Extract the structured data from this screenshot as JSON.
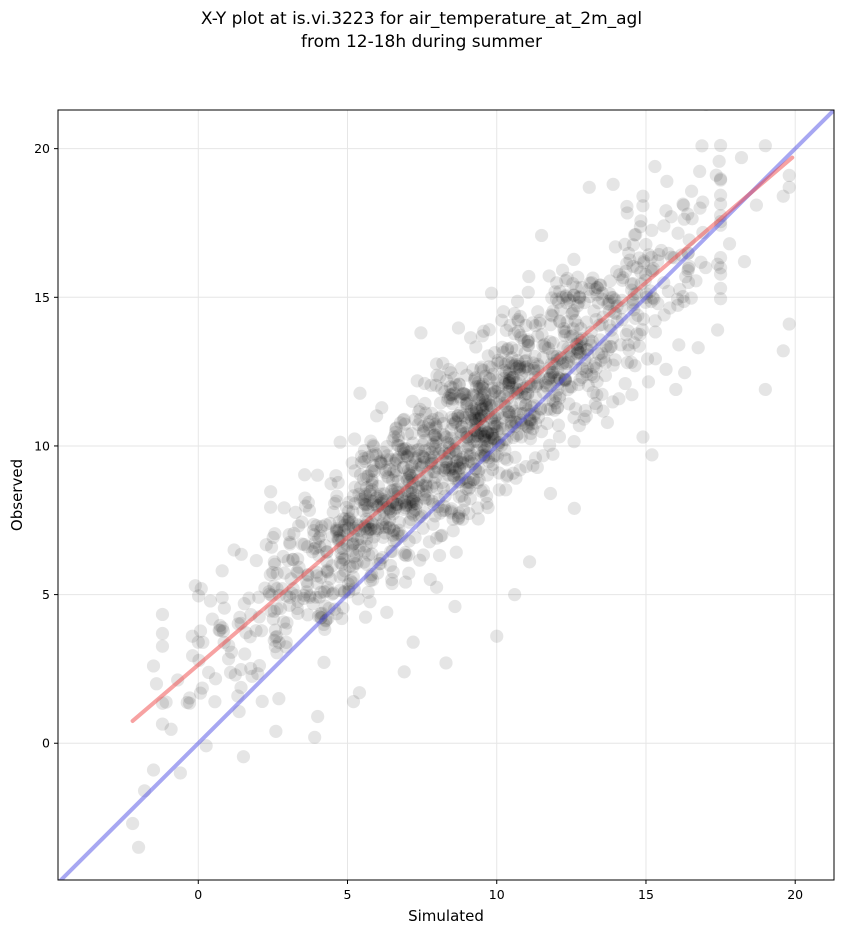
{
  "title": {
    "line1": "X-Y plot at is.vi.3223 for air_temperature_at_2m_agl",
    "line2": "from 12-18h during summer"
  },
  "chart_data": {
    "type": "scatter",
    "xlabel": "Simulated",
    "ylabel": "Observed",
    "xlim": [
      -4.7,
      21.3
    ],
    "ylim": [
      -4.6,
      21.3
    ],
    "xticks": [
      0,
      5,
      10,
      15,
      20
    ],
    "yticks": [
      0,
      5,
      10,
      15,
      20
    ],
    "grid": true,
    "point_color": "#000000",
    "point_alpha": 0.1,
    "fit_line": {
      "color": "#f04545",
      "x": [
        -2.2,
        19.9
      ],
      "y": [
        0.75,
        19.7
      ]
    },
    "identity_line": {
      "color": "#5050e6",
      "x": [
        -4.7,
        21.3
      ],
      "y": [
        -4.7,
        21.3
      ]
    },
    "cloud": {
      "count": 1500,
      "x_mean": 8.8,
      "x_sd": 3.7,
      "slope": 0.86,
      "intercept": 2.6,
      "residual_sd": 1.45
    },
    "outliers": [
      [
        -2.2,
        -2.7
      ],
      [
        -1.8,
        -1.6
      ],
      [
        -1.5,
        -0.9
      ],
      [
        -1.4,
        2.0
      ],
      [
        -1.5,
        2.6
      ],
      [
        -2.0,
        -3.5
      ],
      [
        -0.6,
        -1.0
      ],
      [
        -0.2,
        3.6
      ],
      [
        0.0,
        3.4
      ],
      [
        -0.1,
        5.3
      ],
      [
        0.1,
        5.2
      ],
      [
        0.7,
        3.8
      ],
      [
        1.2,
        6.5
      ],
      [
        0.8,
        5.8
      ],
      [
        3.9,
        0.2
      ],
      [
        4.0,
        0.9
      ],
      [
        2.6,
        0.4
      ],
      [
        2.7,
        1.5
      ],
      [
        5.2,
        1.4
      ],
      [
        5.4,
        1.7
      ],
      [
        8.3,
        2.7
      ],
      [
        10.0,
        3.6
      ],
      [
        10.6,
        5.0
      ],
      [
        8.6,
        4.6
      ],
      [
        6.9,
        2.4
      ],
      [
        7.2,
        3.4
      ],
      [
        11.1,
        6.1
      ],
      [
        12.6,
        7.9
      ],
      [
        11.8,
        8.4
      ],
      [
        13.0,
        11.0
      ],
      [
        14.9,
        10.3
      ],
      [
        15.2,
        9.7
      ],
      [
        16.0,
        11.9
      ],
      [
        17.4,
        13.9
      ],
      [
        19.0,
        11.9
      ],
      [
        19.6,
        13.2
      ],
      [
        19.8,
        14.1
      ],
      [
        19.6,
        18.4
      ],
      [
        19.8,
        19.1
      ],
      [
        19.8,
        18.7
      ],
      [
        19.0,
        20.1
      ],
      [
        18.2,
        19.7
      ],
      [
        18.7,
        18.1
      ],
      [
        18.3,
        16.2
      ],
      [
        17.8,
        16.8
      ],
      [
        16.9,
        18.2
      ],
      [
        16.4,
        17.8
      ],
      [
        15.3,
        19.4
      ],
      [
        15.7,
        18.9
      ],
      [
        14.9,
        18.4
      ],
      [
        13.1,
        18.7
      ],
      [
        13.9,
        18.8
      ],
      [
        17.0,
        16.0
      ],
      [
        16.1,
        13.4
      ]
    ]
  }
}
